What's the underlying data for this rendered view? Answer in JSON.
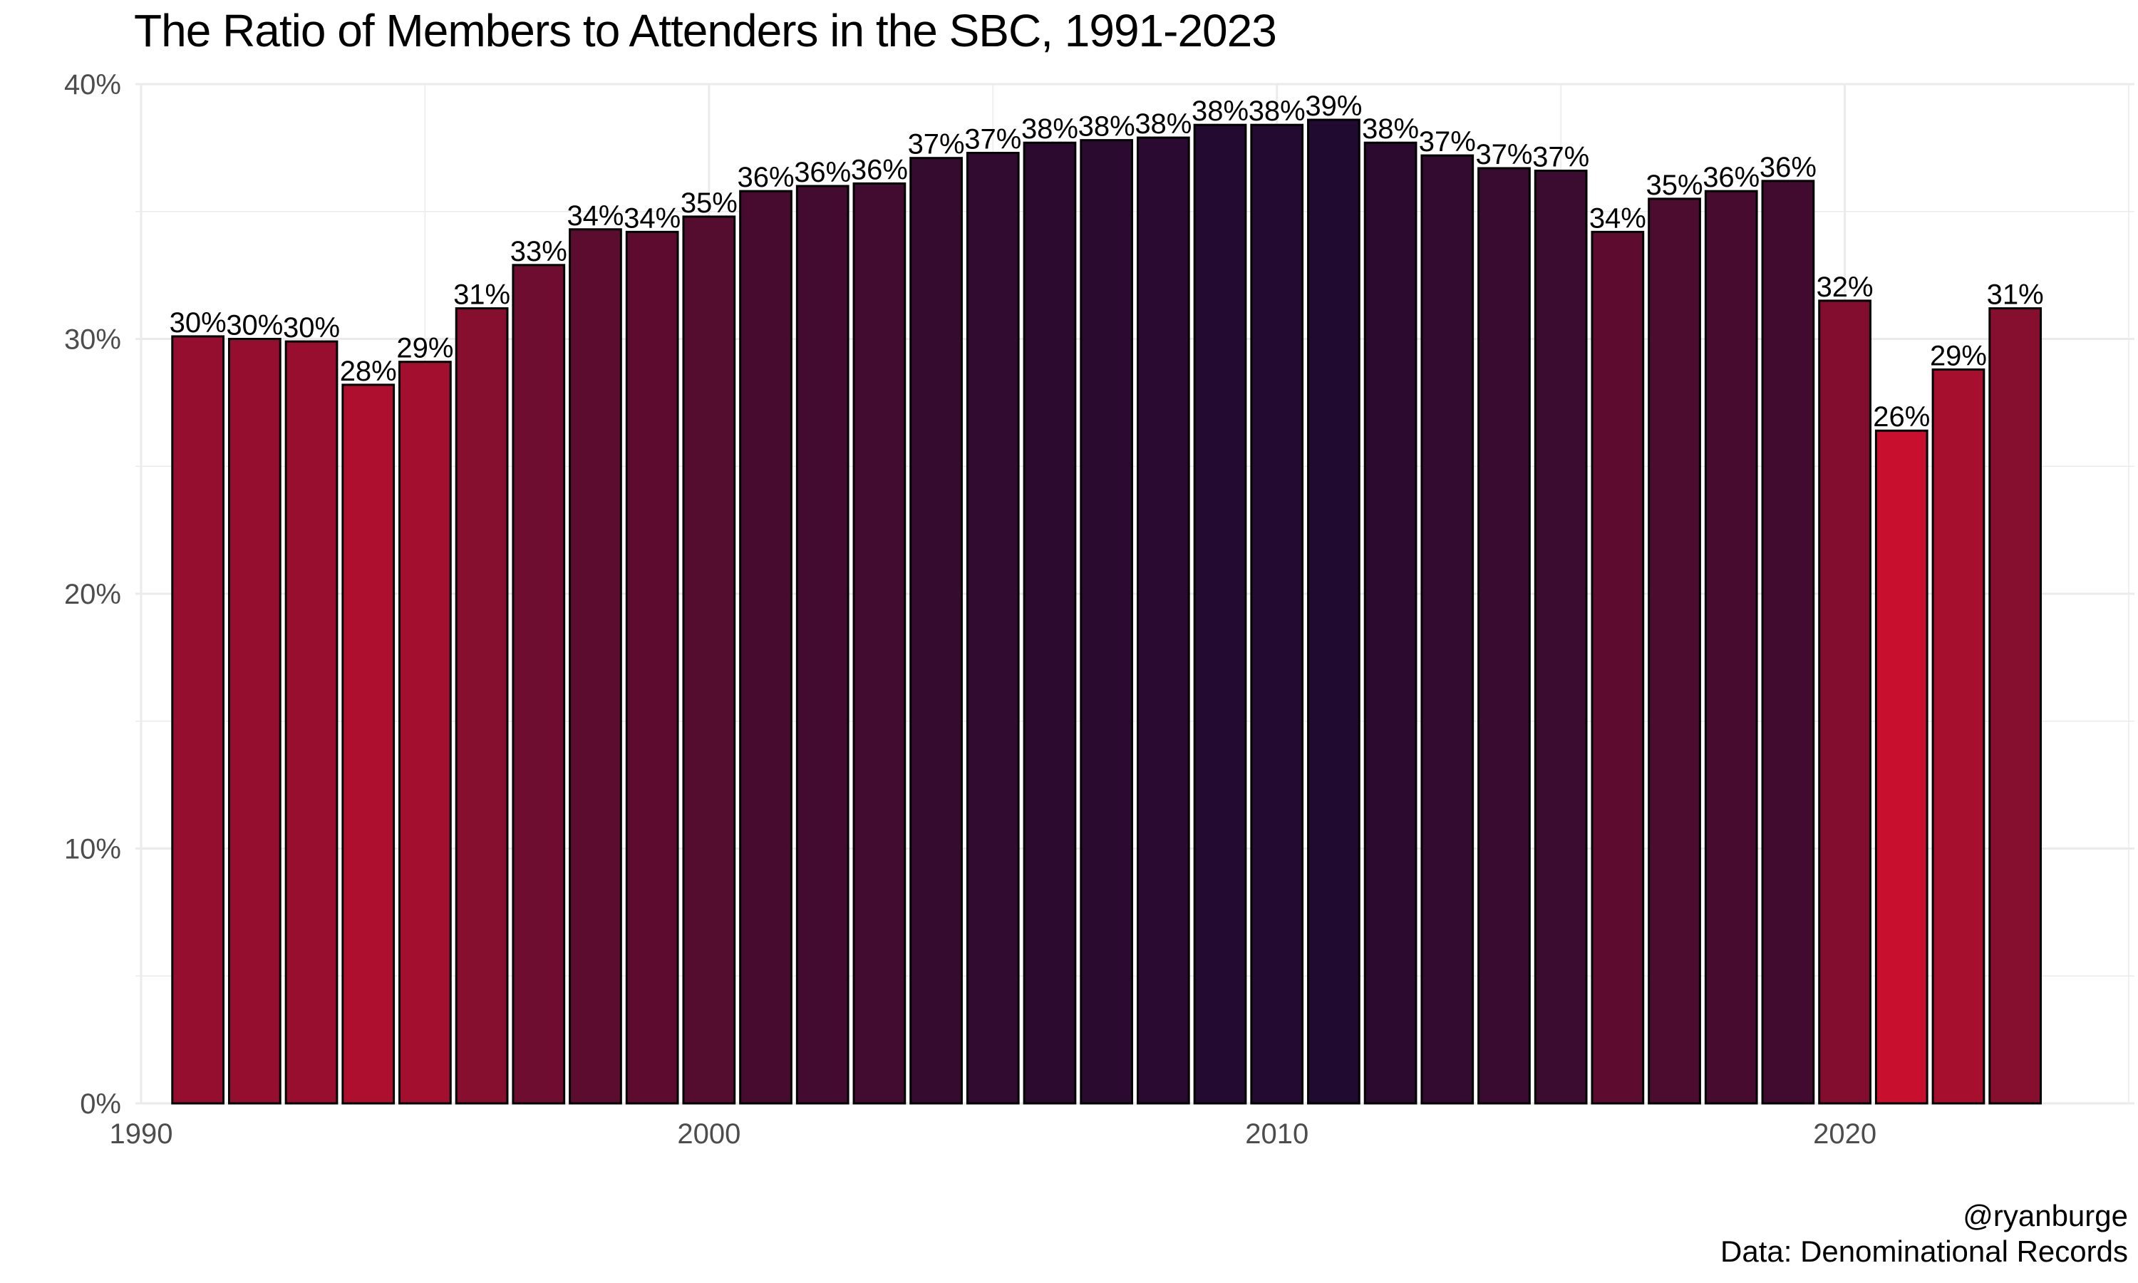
{
  "chart_data": {
    "type": "bar",
    "title": "The Ratio of Members to Attenders in the SBC, 1991-2023",
    "xlabel": "",
    "ylabel": "",
    "x": [
      1991,
      1992,
      1993,
      1994,
      1995,
      1996,
      1997,
      1998,
      1999,
      2000,
      2001,
      2002,
      2003,
      2004,
      2005,
      2006,
      2007,
      2008,
      2009,
      2010,
      2011,
      2012,
      2013,
      2014,
      2015,
      2016,
      2017,
      2018,
      2019,
      2020,
      2021,
      2022,
      2023
    ],
    "values": [
      30.1,
      30.0,
      29.9,
      28.2,
      29.1,
      31.2,
      32.9,
      34.3,
      34.2,
      34.8,
      35.8,
      36.0,
      36.1,
      37.1,
      37.3,
      37.7,
      37.8,
      37.9,
      38.4,
      38.4,
      38.6,
      37.7,
      37.2,
      36.7,
      36.6,
      34.2,
      35.5,
      35.8,
      36.2,
      31.5,
      26.4,
      28.8,
      31.2
    ],
    "labels": [
      "30%",
      "30%",
      "30%",
      "28%",
      "29%",
      "31%",
      "33%",
      "34%",
      "34%",
      "35%",
      "36%",
      "36%",
      "36%",
      "37%",
      "37%",
      "38%",
      "38%",
      "38%",
      "38%",
      "38%",
      "39%",
      "38%",
      "37%",
      "37%",
      "37%",
      "34%",
      "35%",
      "36%",
      "36%",
      "32%",
      "26%",
      "29%",
      "31%"
    ],
    "xlim": [
      1989.9,
      2025.1
    ],
    "ylim": [
      0,
      40
    ],
    "x_ticks": [
      1990,
      2000,
      2010,
      2020
    ],
    "x_tick_labels": [
      "1990",
      "2000",
      "2010",
      "2020"
    ],
    "y_ticks": [
      0,
      10,
      20,
      30,
      40
    ],
    "y_tick_labels": [
      "0%",
      "10%",
      "20%",
      "30%",
      "40%"
    ],
    "grid": true,
    "legend": "none",
    "color_scale": {
      "low": "#c8102e",
      "high": "#200a30"
    },
    "bar_outline_color": "#000000",
    "grid_color": "#ebebeb"
  },
  "caption": {
    "handle": "@ryanburge",
    "source": "Data: Denominational Records"
  }
}
